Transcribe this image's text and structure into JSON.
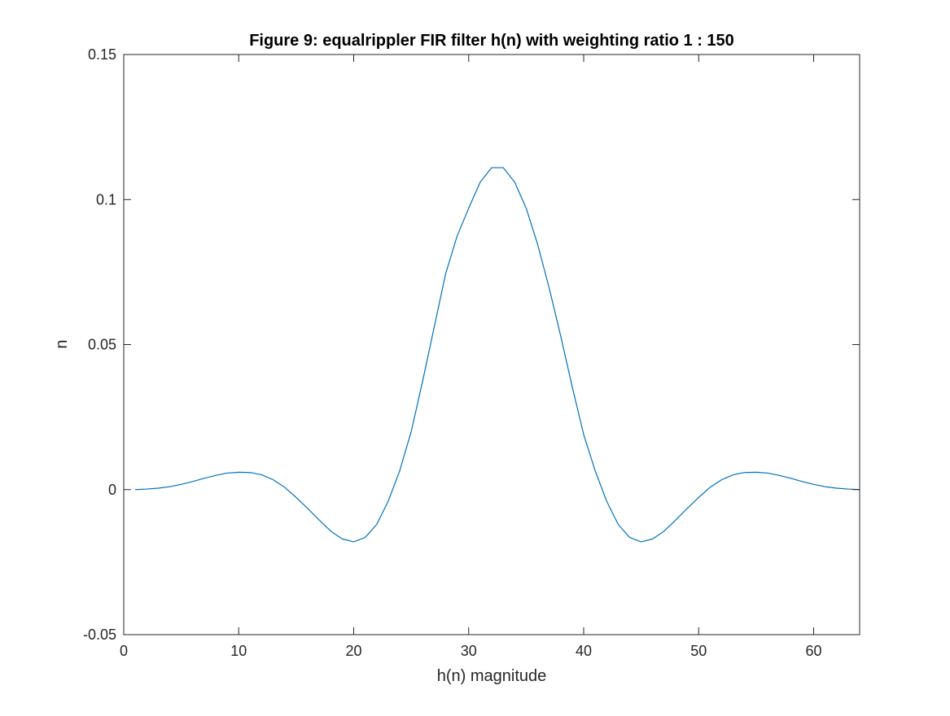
{
  "chart_data": {
    "type": "line",
    "title": "Figure 9: equalrippler FIR filter h(n) with weighting ratio 1 : 150",
    "xlabel": "h(n) magnitude",
    "ylabel": "n",
    "xlim": [
      0,
      64
    ],
    "ylim": [
      -0.05,
      0.15
    ],
    "grid": false,
    "box": true,
    "x_ticks": [
      0,
      10,
      20,
      30,
      40,
      50,
      60
    ],
    "x_tick_labels": [
      "0",
      "10",
      "20",
      "30",
      "40",
      "50",
      "60"
    ],
    "y_ticks": [
      -0.05,
      0,
      0.05,
      0.1,
      0.15
    ],
    "y_tick_labels": [
      "-0.05",
      "0",
      "0.05",
      "0.1",
      "0.15"
    ],
    "series": [
      {
        "color": "#0072bd",
        "x": [
          1,
          2,
          3,
          4,
          5,
          6,
          7,
          8,
          9,
          10,
          11,
          12,
          13,
          14,
          15,
          16,
          17,
          18,
          19,
          20,
          21,
          22,
          23,
          24,
          25,
          26,
          27,
          28,
          29,
          30,
          31,
          32,
          33,
          34,
          35,
          36,
          37,
          38,
          39,
          40,
          41,
          42,
          43,
          44,
          45,
          46,
          47,
          48,
          49,
          50,
          51,
          52,
          53,
          54,
          55,
          56,
          57,
          58,
          59,
          60,
          61,
          62,
          63,
          64
        ],
        "y": [
          0.0,
          0.0002,
          0.0005,
          0.001,
          0.0018,
          0.0028,
          0.0039,
          0.0049,
          0.0057,
          0.006,
          0.0059,
          0.0051,
          0.0034,
          0.0008,
          -0.0027,
          -0.0065,
          -0.0105,
          -0.0143,
          -0.017,
          -0.018,
          -0.0165,
          -0.012,
          -0.004,
          0.0065,
          0.02,
          0.0375,
          0.056,
          0.0745,
          0.0875,
          0.097,
          0.106,
          0.111,
          0.111,
          0.106,
          0.097,
          0.0845,
          0.0695,
          0.053,
          0.0355,
          0.019,
          0.0065,
          -0.004,
          -0.012,
          -0.0165,
          -0.018,
          -0.017,
          -0.0143,
          -0.0105,
          -0.0065,
          -0.0027,
          0.0008,
          0.0034,
          0.0051,
          0.0059,
          0.006,
          0.0057,
          0.0049,
          0.0039,
          0.0028,
          0.0018,
          0.001,
          0.0005,
          0.0002,
          0.0
        ]
      }
    ]
  }
}
